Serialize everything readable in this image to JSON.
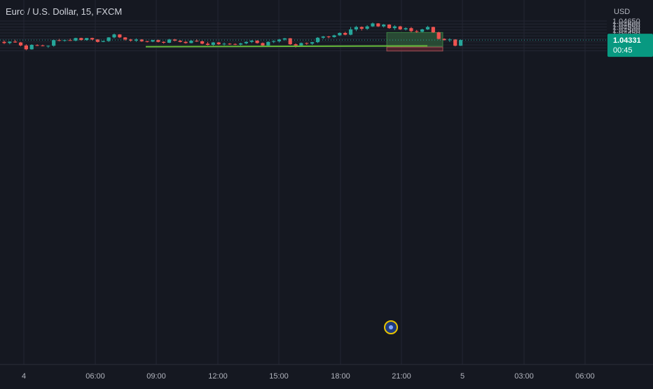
{
  "header": {
    "title": "Euro / U.S. Dollar, 15, FXCM"
  },
  "price_axis": {
    "currency": "USD",
    "ticks": [
      "1.04650",
      "1.04600",
      "1.04550",
      "1.04500",
      "1.04450",
      "1.04400",
      "1.04350",
      "1.04300",
      "1.04250",
      "1.04200",
      "1.04150"
    ],
    "current_price": "1.04331",
    "countdown": "00:45"
  },
  "time_axis": {
    "ticks": [
      "4",
      "06:00",
      "09:00",
      "12:00",
      "15:00",
      "18:00",
      "21:00",
      "5",
      "03:00",
      "06:00"
    ]
  },
  "colors": {
    "background": "#151821",
    "grid": "#232633",
    "up": "#26a69a",
    "down": "#ef5350",
    "support_line": "#66bb3a",
    "profit_zone": "#2f5a3a",
    "loss_zone": "#5a2630",
    "price_tag": "#089981",
    "event_marker": "#e6c200",
    "axis_text": "#b2b5be"
  },
  "chart_data": {
    "type": "candlestick",
    "symbol": "Euro / U.S. Dollar",
    "interval": "15",
    "source": "FXCM",
    "ylim": [
      1.04105,
      1.04655
    ],
    "candles": [
      [
        1.043,
        1.04325,
        1.04265,
        1.0428
      ],
      [
        1.0428,
        1.0431,
        1.0426,
        1.04305
      ],
      [
        1.04305,
        1.04335,
        1.04285,
        1.0429
      ],
      [
        1.0429,
        1.043,
        1.04225,
        1.0424
      ],
      [
        1.0424,
        1.0426,
        1.0416,
        1.04175
      ],
      [
        1.04175,
        1.0426,
        1.0417,
        1.0425
      ],
      [
        1.04245,
        1.0426,
        1.0423,
        1.0424
      ],
      [
        1.0424,
        1.04255,
        1.04225,
        1.0423
      ],
      [
        1.0423,
        1.0424,
        1.042,
        1.04235
      ],
      [
        1.04235,
        1.0434,
        1.0422,
        1.0433
      ],
      [
        1.0433,
        1.0435,
        1.0431,
        1.0432
      ],
      [
        1.0432,
        1.0434,
        1.04305,
        1.0433
      ],
      [
        1.0433,
        1.04355,
        1.04315,
        1.0432
      ],
      [
        1.0432,
        1.0437,
        1.0431,
        1.04365
      ],
      [
        1.04365,
        1.0437,
        1.0432,
        1.0433
      ],
      [
        1.0433,
        1.04365,
        1.0432,
        1.04365
      ],
      [
        1.04365,
        1.0437,
        1.04325,
        1.0434
      ],
      [
        1.0434,
        1.04345,
        1.0429,
        1.043
      ],
      [
        1.043,
        1.0432,
        1.04295,
        1.04315
      ],
      [
        1.04315,
        1.0438,
        1.043,
        1.04375
      ],
      [
        1.04375,
        1.0444,
        1.0436,
        1.04425
      ],
      [
        1.04425,
        1.0443,
        1.04365,
        1.04375
      ],
      [
        1.04375,
        1.0438,
        1.0432,
        1.0434
      ],
      [
        1.0434,
        1.0435,
        1.04305,
        1.0432
      ],
      [
        1.0432,
        1.0436,
        1.043,
        1.0434
      ],
      [
        1.0434,
        1.04345,
        1.043,
        1.0431
      ],
      [
        1.0431,
        1.0432,
        1.0429,
        1.04305
      ],
      [
        1.04305,
        1.04335,
        1.04295,
        1.0433
      ],
      [
        1.0433,
        1.0434,
        1.0429,
        1.043
      ],
      [
        1.043,
        1.0431,
        1.0427,
        1.04285
      ],
      [
        1.04285,
        1.0435,
        1.0428,
        1.0434
      ],
      [
        1.0434,
        1.0435,
        1.0431,
        1.0432
      ],
      [
        1.0432,
        1.0433,
        1.0429,
        1.043
      ],
      [
        1.043,
        1.04315,
        1.0427,
        1.0428
      ],
      [
        1.0428,
        1.0433,
        1.04275,
        1.0432
      ],
      [
        1.0432,
        1.04345,
        1.043,
        1.0431
      ],
      [
        1.0431,
        1.0432,
        1.0426,
        1.0427
      ],
      [
        1.0427,
        1.043,
        1.0424,
        1.0425
      ],
      [
        1.0425,
        1.043,
        1.0423,
        1.0429
      ],
      [
        1.0429,
        1.043,
        1.0425,
        1.0426
      ],
      [
        1.0426,
        1.0429,
        1.0424,
        1.0427
      ],
      [
        1.0427,
        1.0428,
        1.0425,
        1.04265
      ],
      [
        1.04265,
        1.04275,
        1.04245,
        1.04255
      ],
      [
        1.04255,
        1.04285,
        1.0424,
        1.04275
      ],
      [
        1.04275,
        1.0431,
        1.0426,
        1.043
      ],
      [
        1.043,
        1.0433,
        1.0428,
        1.0432
      ],
      [
        1.0432,
        1.0433,
        1.0427,
        1.0428
      ],
      [
        1.0428,
        1.0429,
        1.0422,
        1.0424
      ],
      [
        1.0424,
        1.0431,
        1.0423,
        1.043
      ],
      [
        1.043,
        1.0433,
        1.0428,
        1.0431
      ],
      [
        1.0431,
        1.0435,
        1.0429,
        1.0434
      ],
      [
        1.0434,
        1.04365,
        1.0432,
        1.0436
      ],
      [
        1.0436,
        1.04365,
        1.0425,
        1.0426
      ],
      [
        1.0426,
        1.04275,
        1.04205,
        1.0424
      ],
      [
        1.0424,
        1.0429,
        1.04225,
        1.0428
      ],
      [
        1.0428,
        1.0429,
        1.0425,
        1.0427
      ],
      [
        1.0427,
        1.043,
        1.0425,
        1.04295
      ],
      [
        1.04295,
        1.0438,
        1.0428,
        1.0437
      ],
      [
        1.0437,
        1.044,
        1.0435,
        1.0439
      ],
      [
        1.0439,
        1.044,
        1.0436,
        1.0438
      ],
      [
        1.0438,
        1.0442,
        1.0437,
        1.0441
      ],
      [
        1.0441,
        1.0446,
        1.044,
        1.0445
      ],
      [
        1.0445,
        1.0447,
        1.0441,
        1.0442
      ],
      [
        1.0442,
        1.0455,
        1.0441,
        1.0451
      ],
      [
        1.0451,
        1.0457,
        1.0448,
        1.0455
      ],
      [
        1.0455,
        1.0456,
        1.0449,
        1.0452
      ],
      [
        1.0452,
        1.0458,
        1.045,
        1.0456
      ],
      [
        1.0456,
        1.04625,
        1.0455,
        1.0461
      ],
      [
        1.0461,
        1.04615,
        1.0455,
        1.0456
      ],
      [
        1.0456,
        1.046,
        1.0454,
        1.0459
      ],
      [
        1.0459,
        1.04595,
        1.0452,
        1.0453
      ],
      [
        1.0453,
        1.0458,
        1.045,
        1.0456
      ],
      [
        1.0456,
        1.0457,
        1.045,
        1.0451
      ],
      [
        1.0451,
        1.04545,
        1.0449,
        1.0453
      ],
      [
        1.0453,
        1.0455,
        1.0446,
        1.0448
      ],
      [
        1.0448,
        1.045,
        1.0445,
        1.0447
      ],
      [
        1.0447,
        1.0452,
        1.0446,
        1.0451
      ],
      [
        1.0451,
        1.0457,
        1.045,
        1.0455
      ],
      [
        1.0455,
        1.04555,
        1.0445,
        1.0446
      ],
      [
        1.0446,
        1.0447,
        1.0434,
        1.0435
      ],
      [
        1.0435,
        1.0436,
        1.0432,
        1.0433
      ],
      [
        1.0433,
        1.0436,
        1.043,
        1.0434
      ],
      [
        1.0434,
        1.04345,
        1.04225,
        1.04235
      ],
      [
        1.04235,
        1.0434,
        1.0423,
        1.04331
      ]
    ],
    "support_line": {
      "price": 1.04225
    },
    "position": {
      "type": "long",
      "entry": 1.04225,
      "target": 1.04458,
      "stop": 1.04158
    },
    "last_price": 1.04331
  }
}
